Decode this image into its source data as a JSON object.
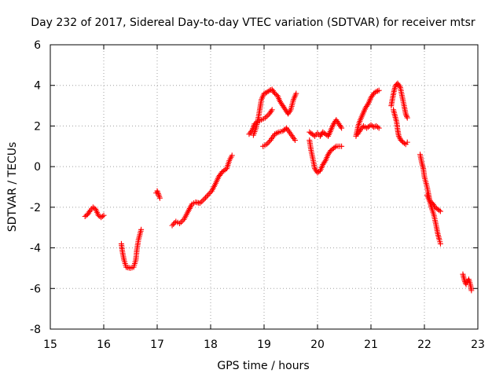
{
  "chart_data": {
    "type": "scatter",
    "title": "Day 232 of 2017, Sidereal Day-to-day VTEC variation (SDTVAR) for receiver mtsr",
    "xlabel": "GPS time / hours",
    "ylabel": "SDTVAR / TECUs",
    "xlim": [
      15,
      23
    ],
    "ylim": [
      -8,
      6
    ],
    "xticks": [
      15,
      16,
      17,
      18,
      19,
      20,
      21,
      22,
      23
    ],
    "yticks": [
      -8,
      -6,
      -4,
      -2,
      0,
      2,
      4,
      6
    ],
    "grid": true,
    "marker": "+",
    "color": "#ff0000",
    "series": [
      {
        "name": "seg1",
        "points": [
          [
            15.65,
            -2.45
          ],
          [
            15.7,
            -2.35
          ],
          [
            15.75,
            -2.15
          ],
          [
            15.8,
            -2.0
          ],
          [
            15.85,
            -2.1
          ],
          [
            15.9,
            -2.4
          ],
          [
            15.95,
            -2.5
          ],
          [
            16.0,
            -2.4
          ]
        ]
      },
      {
        "name": "seg2",
        "points": [
          [
            16.33,
            -3.8
          ],
          [
            16.35,
            -4.2
          ],
          [
            16.38,
            -4.6
          ],
          [
            16.42,
            -4.95
          ],
          [
            16.5,
            -5.0
          ],
          [
            16.56,
            -4.95
          ],
          [
            16.6,
            -4.6
          ],
          [
            16.62,
            -4.1
          ],
          [
            16.65,
            -3.6
          ],
          [
            16.7,
            -3.1
          ]
        ]
      },
      {
        "name": "seg3",
        "points": [
          [
            16.98,
            -1.3
          ],
          [
            17.0,
            -1.2
          ],
          [
            17.03,
            -1.4
          ],
          [
            17.05,
            -1.55
          ]
        ]
      },
      {
        "name": "seg4",
        "points": [
          [
            17.28,
            -2.9
          ],
          [
            17.35,
            -2.7
          ],
          [
            17.42,
            -2.8
          ],
          [
            17.5,
            -2.6
          ],
          [
            17.58,
            -2.2
          ],
          [
            17.65,
            -1.85
          ],
          [
            17.72,
            -1.75
          ],
          [
            17.8,
            -1.8
          ],
          [
            17.88,
            -1.6
          ],
          [
            17.95,
            -1.4
          ],
          [
            18.02,
            -1.2
          ],
          [
            18.08,
            -0.9
          ],
          [
            18.15,
            -0.5
          ],
          [
            18.22,
            -0.25
          ],
          [
            18.3,
            -0.1
          ],
          [
            18.35,
            0.3
          ],
          [
            18.4,
            0.55
          ]
        ]
      },
      {
        "name": "seg5",
        "points": [
          [
            18.72,
            1.6
          ],
          [
            18.78,
            1.8
          ],
          [
            18.82,
            2.1
          ],
          [
            18.88,
            2.2
          ],
          [
            18.95,
            2.3
          ],
          [
            19.02,
            2.4
          ],
          [
            19.1,
            2.6
          ],
          [
            19.15,
            2.8
          ]
        ]
      },
      {
        "name": "seg6",
        "points": [
          [
            18.8,
            1.55
          ],
          [
            18.85,
            1.9
          ],
          [
            18.9,
            2.5
          ],
          [
            18.95,
            3.3
          ],
          [
            19.0,
            3.6
          ],
          [
            19.05,
            3.65
          ],
          [
            19.1,
            3.75
          ],
          [
            19.15,
            3.8
          ],
          [
            19.2,
            3.6
          ],
          [
            19.25,
            3.5
          ],
          [
            19.3,
            3.2
          ],
          [
            19.35,
            3.0
          ],
          [
            19.4,
            2.8
          ],
          [
            19.45,
            2.6
          ],
          [
            19.5,
            2.8
          ],
          [
            19.55,
            3.3
          ],
          [
            19.6,
            3.6
          ]
        ]
      },
      {
        "name": "seg7",
        "points": [
          [
            18.98,
            1.0
          ],
          [
            19.05,
            1.1
          ],
          [
            19.12,
            1.3
          ],
          [
            19.2,
            1.6
          ],
          [
            19.28,
            1.7
          ],
          [
            19.35,
            1.75
          ],
          [
            19.42,
            1.9
          ],
          [
            19.5,
            1.6
          ],
          [
            19.58,
            1.3
          ]
        ]
      },
      {
        "name": "seg8",
        "points": [
          [
            19.85,
            1.7
          ],
          [
            19.9,
            1.6
          ],
          [
            19.95,
            1.5
          ],
          [
            20.0,
            1.65
          ],
          [
            20.05,
            1.5
          ],
          [
            20.1,
            1.7
          ],
          [
            20.15,
            1.6
          ],
          [
            20.2,
            1.5
          ],
          [
            20.25,
            1.8
          ],
          [
            20.3,
            2.1
          ],
          [
            20.35,
            2.3
          ],
          [
            20.4,
            2.1
          ],
          [
            20.45,
            1.9
          ]
        ]
      },
      {
        "name": "seg9",
        "points": [
          [
            19.85,
            1.3
          ],
          [
            19.88,
            0.8
          ],
          [
            19.92,
            0.3
          ],
          [
            19.95,
            -0.1
          ],
          [
            20.0,
            -0.3
          ],
          [
            20.05,
            -0.2
          ],
          [
            20.1,
            0.1
          ],
          [
            20.15,
            0.3
          ],
          [
            20.2,
            0.6
          ],
          [
            20.25,
            0.8
          ],
          [
            20.3,
            0.9
          ],
          [
            20.35,
            1.0
          ],
          [
            20.45,
            1.0
          ]
        ]
      },
      {
        "name": "seg10",
        "points": [
          [
            20.72,
            1.5
          ],
          [
            20.76,
            2.0
          ],
          [
            20.8,
            2.3
          ],
          [
            20.85,
            2.6
          ],
          [
            20.9,
            2.9
          ],
          [
            20.95,
            3.1
          ],
          [
            21.0,
            3.4
          ],
          [
            21.05,
            3.6
          ],
          [
            21.1,
            3.7
          ],
          [
            21.15,
            3.75
          ]
        ]
      },
      {
        "name": "seg11",
        "points": [
          [
            20.75,
            1.6
          ],
          [
            20.8,
            1.8
          ],
          [
            20.86,
            2.0
          ],
          [
            20.92,
            1.9
          ],
          [
            21.0,
            2.05
          ],
          [
            21.05,
            1.95
          ],
          [
            21.1,
            2.0
          ],
          [
            21.15,
            1.9
          ]
        ]
      },
      {
        "name": "seg12",
        "points": [
          [
            21.38,
            3.0
          ],
          [
            21.4,
            3.3
          ],
          [
            21.43,
            3.7
          ],
          [
            21.46,
            4.0
          ],
          [
            21.5,
            4.1
          ],
          [
            21.55,
            3.9
          ],
          [
            21.58,
            3.5
          ],
          [
            21.62,
            3.0
          ],
          [
            21.65,
            2.6
          ],
          [
            21.68,
            2.4
          ]
        ]
      },
      {
        "name": "seg13",
        "points": [
          [
            21.42,
            2.8
          ],
          [
            21.45,
            2.5
          ],
          [
            21.48,
            2.2
          ],
          [
            21.5,
            1.8
          ],
          [
            21.52,
            1.5
          ],
          [
            21.56,
            1.3
          ],
          [
            21.6,
            1.2
          ],
          [
            21.65,
            1.1
          ],
          [
            21.68,
            1.2
          ]
        ]
      },
      {
        "name": "seg14",
        "points": [
          [
            21.92,
            0.6
          ],
          [
            21.95,
            0.2
          ],
          [
            21.98,
            -0.1
          ],
          [
            22.0,
            -0.5
          ],
          [
            22.05,
            -1.0
          ],
          [
            22.08,
            -1.4
          ],
          [
            22.1,
            -1.7
          ],
          [
            22.13,
            -2.0
          ],
          [
            22.18,
            -2.4
          ],
          [
            22.22,
            -2.9
          ],
          [
            22.25,
            -3.3
          ],
          [
            22.28,
            -3.6
          ],
          [
            22.3,
            -3.8
          ]
        ]
      },
      {
        "name": "seg15",
        "points": [
          [
            22.05,
            -1.4
          ],
          [
            22.1,
            -1.7
          ],
          [
            22.15,
            -1.8
          ],
          [
            22.2,
            -2.0
          ],
          [
            22.25,
            -2.1
          ],
          [
            22.3,
            -2.2
          ]
        ]
      },
      {
        "name": "seg16",
        "points": [
          [
            22.72,
            -5.3
          ],
          [
            22.75,
            -5.6
          ],
          [
            22.78,
            -5.8
          ],
          [
            22.8,
            -5.7
          ],
          [
            22.83,
            -5.55
          ],
          [
            22.86,
            -5.8
          ],
          [
            22.88,
            -6.1
          ]
        ]
      }
    ]
  }
}
